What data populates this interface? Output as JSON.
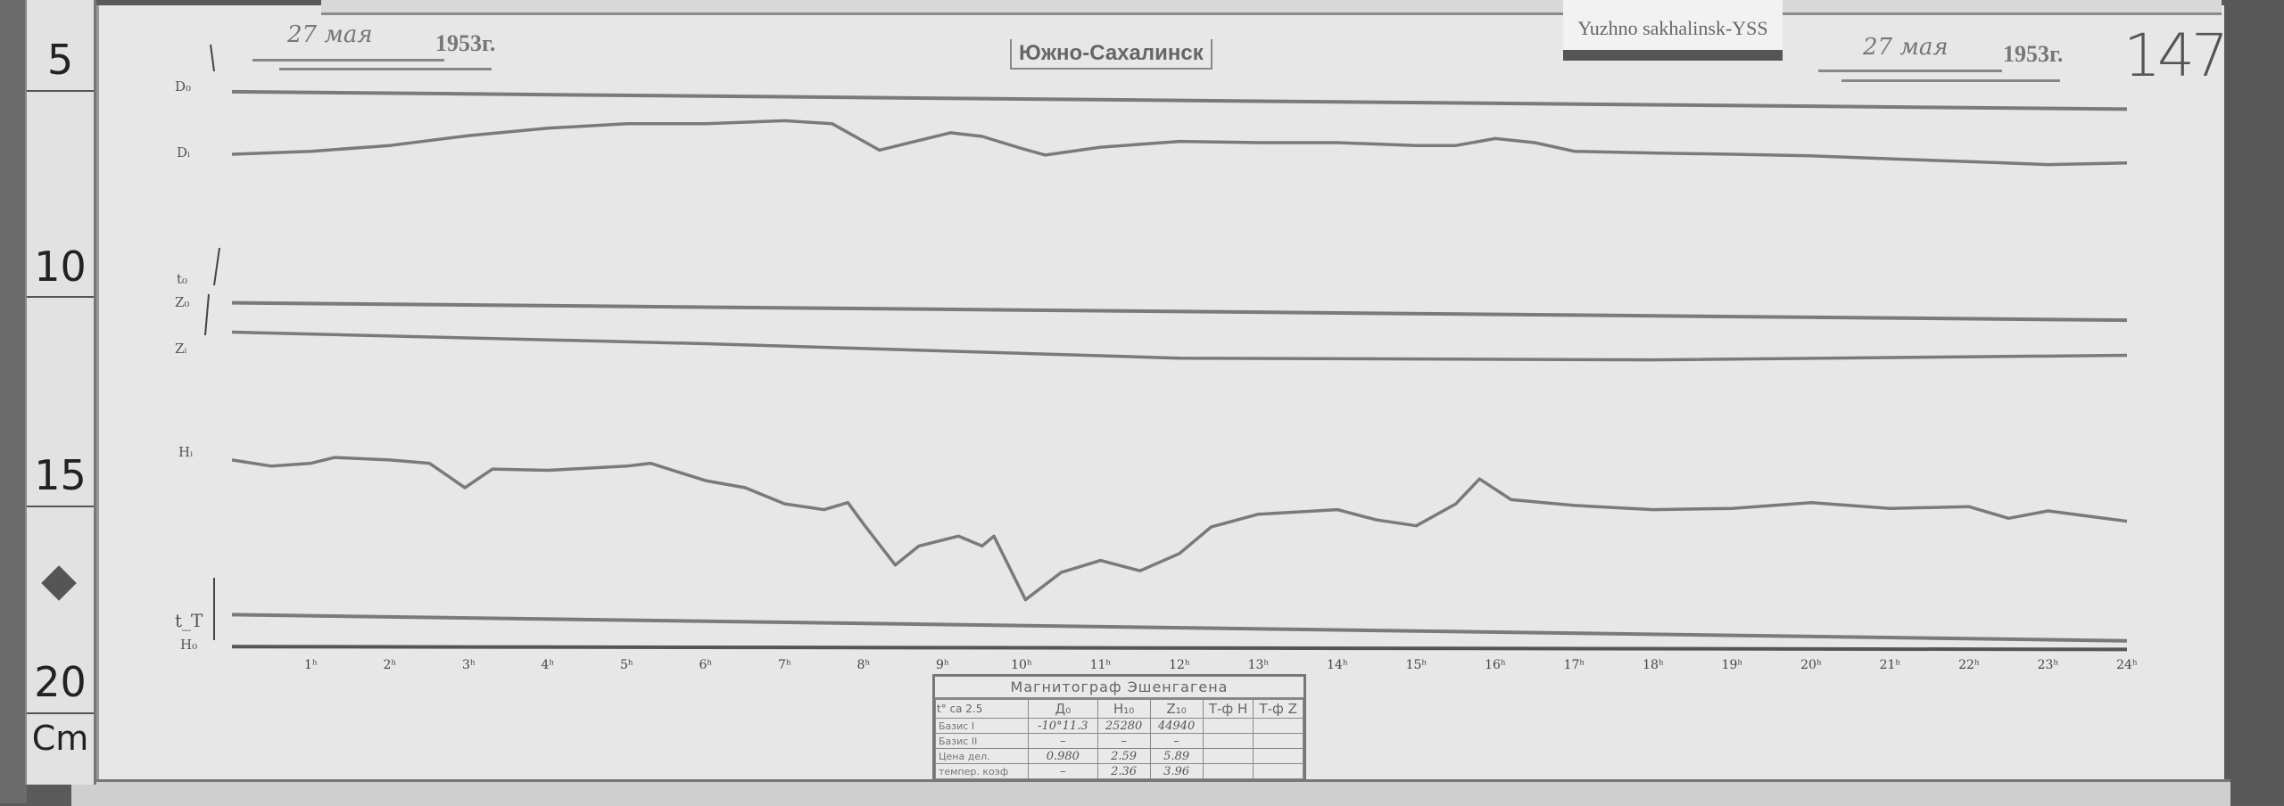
{
  "ruler": {
    "labels": [
      "5",
      "10",
      "15",
      "20"
    ],
    "unit": "Cm"
  },
  "station_tag": "Yuzhno sakhalinsk-YSS",
  "header": {
    "title": "Южно-Сахалинск",
    "date_left": {
      "day": "27 мая",
      "year": "1953г."
    },
    "date_right": {
      "day": "27 мая",
      "year": "1953г."
    },
    "sheet_number": "147"
  },
  "channels": {
    "D0": "D₀",
    "Di": "Dᵢ",
    "t0": "t₀",
    "Z0": "Z₀",
    "Zi": "Zᵢ",
    "Hi": "Hᵢ",
    "tT": "t_T",
    "H0": "H₀"
  },
  "calibration_table": {
    "title": "Магнитограф Эшенгагена",
    "headers": [
      "t° ca 2.5",
      "Д₀",
      "H₁₀",
      "Z₁₀",
      "Т-ф H",
      "Т-ф Z"
    ],
    "rows": [
      [
        "Базис I",
        "-10°11.3",
        "25280",
        "44940",
        "",
        ""
      ],
      [
        "Базис II",
        "–",
        "–",
        "–",
        "",
        ""
      ],
      [
        "Цена дел.",
        "0.980",
        "2.59",
        "5.89",
        "",
        ""
      ],
      [
        "темпер. коэф",
        "–",
        "2.36",
        "3.96",
        "",
        ""
      ]
    ]
  },
  "chart_data": {
    "type": "line",
    "title": "",
    "xlabel": "",
    "ylabel": "",
    "x_unit": "hours",
    "y_unit": "cm (ruler scale)",
    "xlim": [
      0,
      24
    ],
    "ylim": [
      4,
      20
    ],
    "y_inverted": true,
    "grid": false,
    "x_tick_labels": [
      "1ʰ",
      "2ʰ",
      "3ʰ",
      "4ʰ",
      "5ʰ",
      "6ʰ",
      "7ʰ",
      "8ʰ",
      "9ʰ",
      "10ʰ",
      "11ʰ",
      "12ʰ",
      "13ʰ",
      "14ʰ",
      "15ʰ",
      "16ʰ",
      "17ʰ",
      "18ʰ",
      "19ʰ",
      "20ʰ",
      "21ʰ",
      "22ʰ",
      "23ʰ",
      "24ʰ"
    ],
    "trace_color": "#7a7a7a",
    "series": [
      {
        "name": "D₀",
        "points": [
          [
            0,
            5.02
          ],
          [
            24,
            5.44
          ]
        ]
      },
      {
        "name": "Dᵢ",
        "points": [
          [
            0,
            6.53
          ],
          [
            1,
            6.46
          ],
          [
            2,
            6.32
          ],
          [
            3,
            6.08
          ],
          [
            4,
            5.9
          ],
          [
            5,
            5.79
          ],
          [
            6,
            5.79
          ],
          [
            7,
            5.72
          ],
          [
            7.6,
            5.79
          ],
          [
            8.2,
            6.43
          ],
          [
            9.1,
            6.01
          ],
          [
            9.5,
            6.1
          ],
          [
            10,
            6.39
          ],
          [
            10.3,
            6.55
          ],
          [
            11,
            6.36
          ],
          [
            12,
            6.22
          ],
          [
            13,
            6.25
          ],
          [
            14,
            6.25
          ],
          [
            15,
            6.32
          ],
          [
            15.5,
            6.32
          ],
          [
            16,
            6.15
          ],
          [
            16.5,
            6.25
          ],
          [
            17,
            6.46
          ],
          [
            18,
            6.5
          ],
          [
            19,
            6.53
          ],
          [
            20,
            6.57
          ],
          [
            21,
            6.64
          ],
          [
            22,
            6.71
          ],
          [
            23,
            6.78
          ],
          [
            24,
            6.74
          ]
        ]
      },
      {
        "name": "Z₀",
        "points": [
          [
            0,
            10.12
          ],
          [
            24,
            10.54
          ]
        ]
      },
      {
        "name": "Zᵢ",
        "points": [
          [
            0,
            10.83
          ],
          [
            6,
            11.11
          ],
          [
            12,
            11.46
          ],
          [
            18,
            11.5
          ],
          [
            24,
            11.39
          ]
        ]
      },
      {
        "name": "Hᵢ",
        "points": [
          [
            0,
            13.92
          ],
          [
            0.5,
            14.07
          ],
          [
            1,
            14.0
          ],
          [
            1.3,
            13.86
          ],
          [
            2,
            13.92
          ],
          [
            2.5,
            14.0
          ],
          [
            2.95,
            14.59
          ],
          [
            3.3,
            14.14
          ],
          [
            4,
            14.17
          ],
          [
            5,
            14.07
          ],
          [
            5.3,
            14.0
          ],
          [
            6,
            14.42
          ],
          [
            6.5,
            14.59
          ],
          [
            7,
            14.98
          ],
          [
            7.5,
            15.12
          ],
          [
            7.8,
            14.95
          ],
          [
            8,
            15.47
          ],
          [
            8.4,
            16.46
          ],
          [
            8.7,
            16.0
          ],
          [
            9.2,
            15.76
          ],
          [
            9.5,
            16.0
          ],
          [
            9.65,
            15.76
          ],
          [
            10.05,
            17.3
          ],
          [
            10.5,
            16.64
          ],
          [
            11,
            16.35
          ],
          [
            11.5,
            16.6
          ],
          [
            12,
            16.18
          ],
          [
            12.4,
            15.54
          ],
          [
            13,
            15.23
          ],
          [
            14,
            15.12
          ],
          [
            14.5,
            15.37
          ],
          [
            15,
            15.51
          ],
          [
            15.5,
            14.98
          ],
          [
            15.8,
            14.38
          ],
          [
            16.2,
            14.88
          ],
          [
            17,
            15.02
          ],
          [
            18,
            15.12
          ],
          [
            19,
            15.09
          ],
          [
            20,
            14.95
          ],
          [
            21,
            15.09
          ],
          [
            22,
            15.05
          ],
          [
            22.5,
            15.33
          ],
          [
            23,
            15.15
          ],
          [
            24,
            15.4
          ]
        ]
      },
      {
        "name": "t_T",
        "points": [
          [
            0,
            17.66
          ],
          [
            24,
            18.29
          ]
        ]
      },
      {
        "name": "H₀",
        "points": [
          [
            0,
            18.43
          ],
          [
            24,
            18.5
          ]
        ]
      }
    ]
  }
}
